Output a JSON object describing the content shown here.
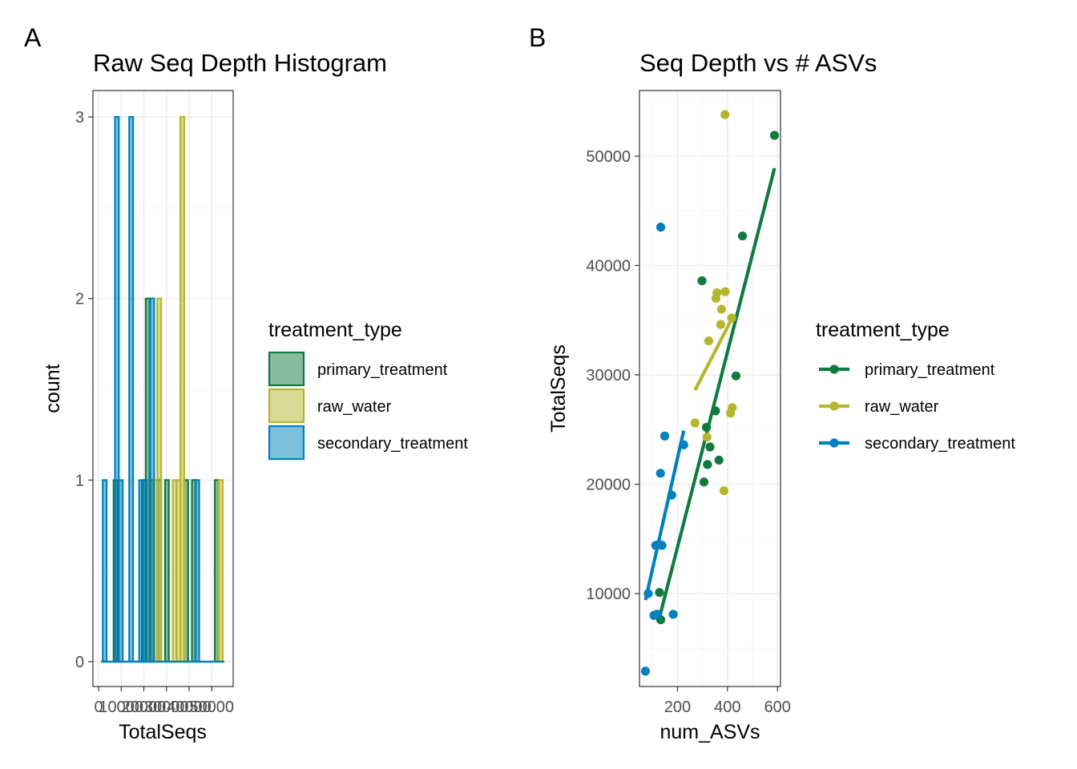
{
  "colors": {
    "primary_treatment": "#117a3f",
    "raw_water": "#b5b62e",
    "secondary_treatment": "#0080bd"
  },
  "panels": {
    "a": {
      "tag": "A"
    },
    "b": {
      "tag": "B"
    }
  },
  "chart_data": [
    {
      "type": "bar",
      "subtype": "histogram",
      "title": "Raw Seq Depth Histogram",
      "xlabel": "TotalSeqs",
      "ylabel": "count",
      "xlim": [
        0,
        57000
      ],
      "ylim": [
        0,
        3
      ],
      "x_ticks": [
        0,
        10000,
        20000,
        30000,
        40000,
        50000
      ],
      "x_tick_labels": [
        "0",
        "10000",
        "20000",
        "30000",
        "40000",
        "50000"
      ],
      "y_ticks": [
        0,
        1,
        2,
        3
      ],
      "grid": true,
      "legend": {
        "title": "treatment_type",
        "position": "right",
        "style": "fill"
      },
      "bin_width": 1700,
      "series": [
        {
          "name": "primary_treatment",
          "bins": [
            {
              "x": 7500,
              "count": 1
            },
            {
              "x": 20000,
              "count": 1
            },
            {
              "x": 21700,
              "count": 2
            },
            {
              "x": 23400,
              "count": 1
            },
            {
              "x": 26800,
              "count": 1
            },
            {
              "x": 30200,
              "count": 1
            },
            {
              "x": 38700,
              "count": 1
            },
            {
              "x": 42100,
              "count": 1
            },
            {
              "x": 52200,
              "count": 1
            }
          ]
        },
        {
          "name": "raw_water",
          "bins": [
            {
              "x": 25100,
              "count": 1
            },
            {
              "x": 26800,
              "count": 2
            },
            {
              "x": 33600,
              "count": 1
            },
            {
              "x": 35300,
              "count": 1
            },
            {
              "x": 37000,
              "count": 3
            },
            {
              "x": 54000,
              "count": 1
            }
          ]
        },
        {
          "name": "secondary_treatment",
          "bins": [
            {
              "x": 2700,
              "count": 1
            },
            {
              "x": 8100,
              "count": 3
            },
            {
              "x": 9800,
              "count": 1
            },
            {
              "x": 14400,
              "count": 3
            },
            {
              "x": 18800,
              "count": 1
            },
            {
              "x": 20500,
              "count": 1
            },
            {
              "x": 23700,
              "count": 2
            },
            {
              "x": 43600,
              "count": 1
            }
          ]
        }
      ]
    },
    {
      "type": "scatter",
      "title": "Seq Depth vs # ASVs",
      "xlabel": "num_ASVs",
      "ylabel": "TotalSeqs",
      "xlim": [
        48,
        612
      ],
      "ylim": [
        1500,
        56000
      ],
      "x_ticks": [
        200,
        400,
        600
      ],
      "y_ticks": [
        10000,
        20000,
        30000,
        40000,
        50000
      ],
      "grid": true,
      "legend": {
        "title": "treatment_type",
        "position": "right",
        "style": "line-point"
      },
      "series": [
        {
          "name": "primary_treatment",
          "points": [
            [
              128,
              10100
            ],
            [
              133,
              7600
            ],
            [
              298,
              38600
            ],
            [
              306,
              20200
            ],
            [
              316,
              25200
            ],
            [
              320,
              21800
            ],
            [
              330,
              23400
            ],
            [
              352,
              26700
            ],
            [
              366,
              22200
            ],
            [
              434,
              29900
            ],
            [
              460,
              42700
            ],
            [
              588,
              51900
            ]
          ],
          "fit": [
            [
              128,
              7800
            ],
            [
              588,
              48900
            ]
          ]
        },
        {
          "name": "raw_water",
          "points": [
            [
              270,
              25600
            ],
            [
              318,
              24300
            ],
            [
              325,
              33100
            ],
            [
              354,
              37000
            ],
            [
              358,
              37500
            ],
            [
              373,
              34600
            ],
            [
              376,
              36000
            ],
            [
              386,
              19400
            ],
            [
              390,
              53800
            ],
            [
              391,
              37600
            ],
            [
              412,
              26500
            ],
            [
              419,
              27000
            ],
            [
              417,
              35200
            ]
          ],
          "fit": [
            [
              270,
              28600
            ],
            [
              419,
              35200
            ]
          ]
        },
        {
          "name": "secondary_treatment",
          "points": [
            [
              72,
              2900
            ],
            [
              83,
              10000
            ],
            [
              106,
              8000
            ],
            [
              113,
              14400
            ],
            [
              118,
              8100
            ],
            [
              127,
              14500
            ],
            [
              132,
              21000
            ],
            [
              133,
              43500
            ],
            [
              138,
              14400
            ],
            [
              149,
              24400
            ],
            [
              177,
              19000
            ],
            [
              183,
              8100
            ],
            [
              225,
              23600
            ]
          ],
          "fit": [
            [
              72,
              9400
            ],
            [
              225,
              24900
            ]
          ]
        }
      ]
    }
  ]
}
